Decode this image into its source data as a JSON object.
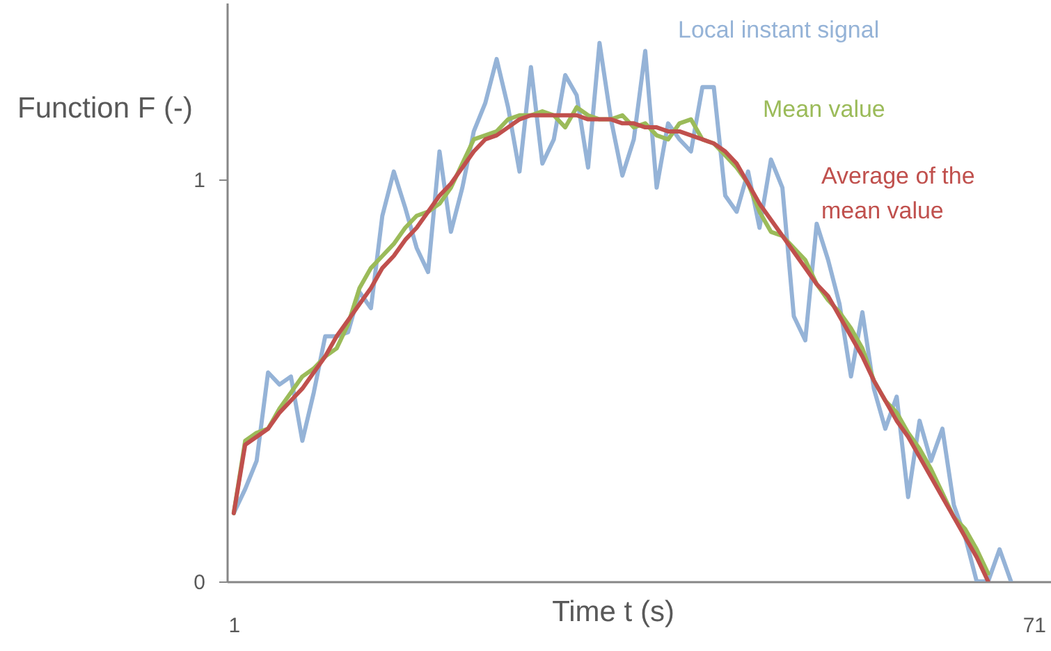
{
  "chart_data": {
    "type": "line",
    "xlabel": "Time t (s)",
    "ylabel": "Function F (-)",
    "xlim": [
      0.4,
      72.5
    ],
    "xticks": [
      1,
      71
    ],
    "ylim": [
      0,
      1.44
    ],
    "yticks": [
      0,
      1
    ],
    "series": [
      {
        "name": "Local instant signal",
        "color": "#95b3d7",
        "x": [
          1,
          2,
          3,
          4,
          5,
          6,
          7,
          8,
          9,
          10,
          11,
          12,
          13,
          14,
          15,
          16,
          17,
          18,
          19,
          20,
          21,
          22,
          23,
          24,
          25,
          26,
          27,
          28,
          29,
          30,
          31,
          32,
          33,
          34,
          35,
          36,
          37,
          38,
          39,
          40,
          41,
          42,
          43,
          44,
          45,
          46,
          47,
          48,
          49,
          50,
          51,
          52,
          53,
          54,
          55,
          56,
          57,
          58,
          59,
          60,
          61,
          62,
          63,
          64,
          65,
          66,
          67,
          68,
          69
        ],
        "values": [
          0.17,
          0.23,
          0.3,
          0.52,
          0.49,
          0.51,
          0.35,
          0.47,
          0.61,
          0.61,
          0.62,
          0.72,
          0.68,
          0.91,
          1.02,
          0.93,
          0.83,
          0.77,
          1.07,
          0.87,
          0.98,
          1.12,
          1.19,
          1.3,
          1.18,
          1.02,
          1.28,
          1.04,
          1.1,
          1.26,
          1.21,
          1.03,
          1.34,
          1.15,
          1.01,
          1.1,
          1.32,
          0.98,
          1.14,
          1.1,
          1.07,
          1.23,
          1.23,
          0.96,
          0.92,
          1.02,
          0.88,
          1.05,
          0.98,
          0.66,
          0.6,
          0.89,
          0.8,
          0.69,
          0.51,
          0.67,
          0.48,
          0.38,
          0.46,
          0.21,
          0.4,
          0.3,
          0.38,
          0.19,
          0.11,
          0.0,
          0.0,
          0.08,
          0.0
        ]
      },
      {
        "name": "Mean value",
        "color": "#9bbb59",
        "x": [
          1,
          2,
          3,
          4,
          5,
          6,
          7,
          8,
          9,
          10,
          11,
          12,
          13,
          14,
          15,
          16,
          17,
          18,
          19,
          20,
          21,
          22,
          23,
          24,
          25,
          26,
          27,
          28,
          29,
          30,
          31,
          32,
          33,
          34,
          35,
          36,
          37,
          38,
          39,
          40,
          41,
          42,
          43,
          44,
          45,
          46,
          47,
          48,
          49,
          50,
          51,
          52,
          53,
          54,
          55,
          56,
          57,
          58,
          59,
          60,
          61,
          62,
          63,
          64,
          65,
          66,
          67
        ],
        "values": [
          0.17,
          0.35,
          0.37,
          0.38,
          0.43,
          0.47,
          0.51,
          0.53,
          0.56,
          0.58,
          0.64,
          0.73,
          0.78,
          0.81,
          0.84,
          0.88,
          0.91,
          0.92,
          0.94,
          0.98,
          1.04,
          1.1,
          1.11,
          1.12,
          1.15,
          1.16,
          1.16,
          1.17,
          1.16,
          1.13,
          1.18,
          1.16,
          1.15,
          1.15,
          1.16,
          1.13,
          1.14,
          1.11,
          1.1,
          1.14,
          1.15,
          1.1,
          1.09,
          1.06,
          1.03,
          0.99,
          0.92,
          0.87,
          0.86,
          0.83,
          0.8,
          0.74,
          0.7,
          0.67,
          0.63,
          0.58,
          0.5,
          0.45,
          0.42,
          0.37,
          0.33,
          0.28,
          0.22,
          0.16,
          0.13,
          0.08,
          0.02
        ]
      },
      {
        "name": "Average of the mean value",
        "color": "#c0504d",
        "x": [
          1,
          2,
          3,
          4,
          5,
          6,
          7,
          8,
          9,
          10,
          11,
          12,
          13,
          14,
          15,
          16,
          17,
          18,
          19,
          20,
          21,
          22,
          23,
          24,
          25,
          26,
          27,
          28,
          29,
          30,
          31,
          32,
          33,
          34,
          35,
          36,
          37,
          38,
          39,
          40,
          41,
          42,
          43,
          44,
          45,
          46,
          47,
          48,
          49,
          50,
          51,
          52,
          53,
          54,
          55,
          56,
          57,
          58,
          59,
          60,
          61,
          62,
          63,
          64,
          65,
          66,
          67
        ],
        "values": [
          0.17,
          0.34,
          0.36,
          0.38,
          0.42,
          0.45,
          0.48,
          0.52,
          0.56,
          0.61,
          0.65,
          0.69,
          0.73,
          0.78,
          0.81,
          0.85,
          0.88,
          0.92,
          0.96,
          0.99,
          1.03,
          1.07,
          1.1,
          1.11,
          1.13,
          1.15,
          1.16,
          1.16,
          1.16,
          1.16,
          1.16,
          1.15,
          1.15,
          1.15,
          1.14,
          1.14,
          1.13,
          1.13,
          1.12,
          1.12,
          1.11,
          1.1,
          1.09,
          1.07,
          1.04,
          0.99,
          0.94,
          0.9,
          0.86,
          0.82,
          0.78,
          0.74,
          0.71,
          0.66,
          0.61,
          0.56,
          0.5,
          0.45,
          0.4,
          0.36,
          0.31,
          0.26,
          0.21,
          0.16,
          0.11,
          0.06,
          0.0
        ]
      }
    ]
  }
}
